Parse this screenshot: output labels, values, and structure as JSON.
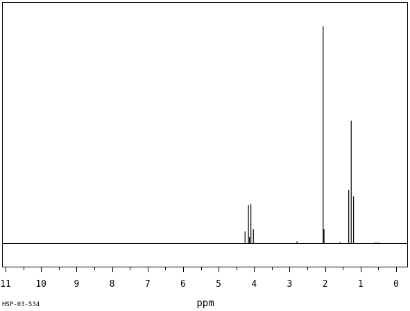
{
  "chart_data": {
    "type": "line",
    "title": "",
    "xlabel": "ppm",
    "ylabel": "",
    "xlim": [
      11,
      0
    ],
    "x_reversed": true,
    "ylim": [
      0,
      100
    ],
    "grid": false,
    "major_ticks": [
      11,
      10,
      9,
      8,
      7,
      6,
      5,
      4,
      3,
      2,
      1,
      0
    ],
    "tick_labels": [
      "11",
      "10",
      "9",
      "8",
      "7",
      "6",
      "5",
      "4",
      "3",
      "2",
      "1",
      "0"
    ],
    "minor_tick_step": 0.5,
    "spectrum_id": "HSP-03-534",
    "peaks": [
      {
        "ppm": 4.255,
        "height": 5.5
      },
      {
        "ppm": 4.16,
        "height": 17.5
      },
      {
        "ppm": 4.13,
        "height": 3.0
      },
      {
        "ppm": 4.09,
        "height": 18.0
      },
      {
        "ppm": 4.02,
        "height": 6.5
      },
      {
        "ppm": 2.79,
        "height": 1.0
      },
      {
        "ppm": 2.055,
        "height": 99.0
      },
      {
        "ppm": 2.03,
        "height": 6.5
      },
      {
        "ppm": 1.58,
        "height": 0.6
      },
      {
        "ppm": 1.335,
        "height": 24.5
      },
      {
        "ppm": 1.265,
        "height": 56.0
      },
      {
        "ppm": 1.2,
        "height": 21.5
      },
      {
        "ppm": 0.6,
        "height": 0.5
      },
      {
        "ppm": 0.53,
        "height": 0.5
      },
      {
        "ppm": 0.47,
        "height": 0.5
      }
    ]
  }
}
